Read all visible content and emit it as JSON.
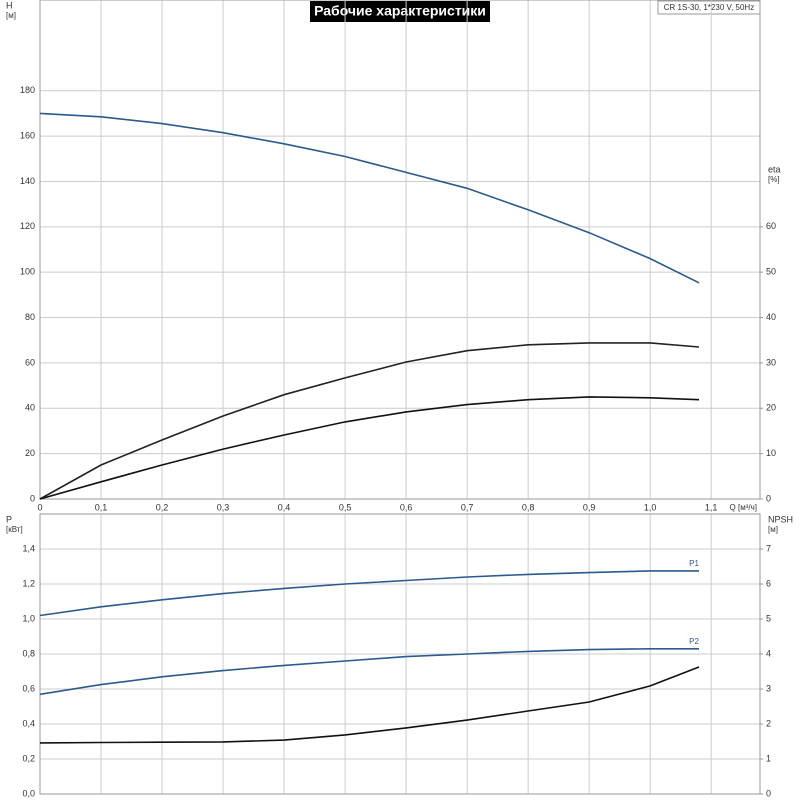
{
  "header": {
    "title": "Рабочие характеристики",
    "model": "CR 1S-30, 1*230 V, 50Hz"
  },
  "chart_data": [
    {
      "type": "line",
      "xlabel": "Q [м³/ч]",
      "ylabel": "H",
      "yunit": "[м]",
      "y2label": "eta",
      "y2unit": "[%]",
      "x": [
        0,
        0.1,
        0.2,
        0.3,
        0.4,
        0.5,
        0.6,
        0.7,
        0.8,
        0.9,
        1.0,
        1.08
      ],
      "xlim": [
        0,
        1.18
      ],
      "xticks": [
        0,
        {
          "value": 0.1,
          "label": "0,1"
        },
        {
          "value": 0.2,
          "label": "0,2"
        },
        {
          "value": 0.3,
          "label": "0,3"
        },
        {
          "value": 0.4,
          "label": "0,4"
        },
        {
          "value": 0.5,
          "label": "0,5"
        },
        {
          "value": 0.6,
          "label": "0,6"
        },
        {
          "value": 0.7,
          "label": "0,7"
        },
        {
          "value": 0.8,
          "label": "0,8"
        },
        {
          "value": 0.9,
          "label": "0,9"
        },
        {
          "value": 1.0,
          "label": "1,0"
        },
        {
          "value": 1.1,
          "label": "1,1"
        }
      ],
      "ylim": [
        0,
        220
      ],
      "yticks": [
        0,
        20,
        40,
        60,
        80,
        100,
        120,
        140,
        160,
        180
      ],
      "y2lim": [
        0,
        110
      ],
      "y2ticks": [
        0,
        10,
        20,
        30,
        40,
        50,
        60
      ],
      "grid": true,
      "series": [
        {
          "color": "#2b5a8e",
          "values": [
            170,
            168.5,
            165.5,
            161.5,
            156.6,
            151,
            144,
            137,
            127.5,
            117.4,
            106,
            95.3
          ]
        },
        {
          "color": "#222222",
          "axis": "y2",
          "values": [
            0,
            7.5,
            13,
            18.3,
            23,
            26.7,
            30.2,
            32.7,
            34,
            34.4,
            34.4,
            33.5
          ]
        },
        {
          "color": "#111111",
          "axis": "y2",
          "values": [
            0,
            3.8,
            7.5,
            11,
            14.1,
            17,
            19.2,
            20.8,
            21.9,
            22.5,
            22.3,
            21.9
          ]
        }
      ]
    },
    {
      "type": "line",
      "ylabel": "P",
      "yunit": "[кВт]",
      "y2label": "NPSH",
      "y2unit": "[м]",
      "x": [
        0,
        0.1,
        0.2,
        0.3,
        0.4,
        0.5,
        0.6,
        0.7,
        0.8,
        0.9,
        1.0,
        1.08
      ],
      "xlim": [
        0,
        1.18
      ],
      "ylim": [
        0,
        1.6
      ],
      "yticks": [
        {
          "value": 0,
          "label": "0,0"
        },
        {
          "value": 0.2,
          "label": "0,2"
        },
        {
          "value": 0.4,
          "label": "0,4"
        },
        {
          "value": 0.6,
          "label": "0,6"
        },
        {
          "value": 0.8,
          "label": "0,8"
        },
        {
          "value": 1.0,
          "label": "1,0"
        },
        {
          "value": 1.2,
          "label": "1,2"
        },
        {
          "value": 1.4,
          "label": "1,4"
        }
      ],
      "y2lim": [
        0,
        8
      ],
      "y2ticks": [
        0,
        1,
        2,
        3,
        4,
        5,
        6,
        7
      ],
      "grid": true,
      "series": [
        {
          "name": "P1",
          "color": "#2b5a8e",
          "values": [
            1.02,
            1.07,
            1.11,
            1.145,
            1.175,
            1.2,
            1.22,
            1.24,
            1.255,
            1.265,
            1.275,
            1.275
          ]
        },
        {
          "name": "P2",
          "color": "#2b5a8e",
          "values": [
            0.57,
            0.625,
            0.67,
            0.705,
            0.735,
            0.76,
            0.785,
            0.8,
            0.815,
            0.825,
            0.83,
            0.83
          ]
        },
        {
          "color": "#111111",
          "axis": "y2",
          "values": [
            1.46,
            1.47,
            1.48,
            1.49,
            1.54,
            1.69,
            1.89,
            2.11,
            2.37,
            2.63,
            3.09,
            3.63
          ]
        }
      ]
    }
  ]
}
